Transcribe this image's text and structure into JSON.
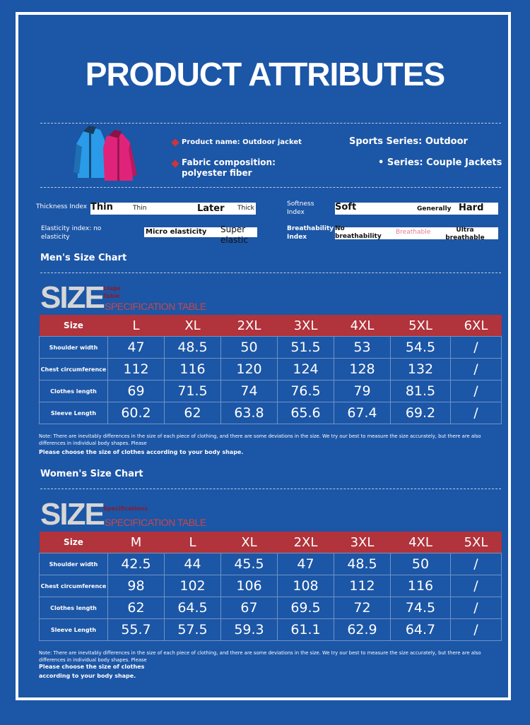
{
  "title": "PRODUCT ATTRIBUTES",
  "product": {
    "name_label": "Product name: Outdoor jacket",
    "fabric_label": "Fabric composition:",
    "fabric_value": "polyester fiber",
    "sports_series": "Sports Series: Outdoor",
    "series": "• Series: Couple Jackets"
  },
  "indices": {
    "thickness": {
      "label": "Thickness Index",
      "a": "Thin",
      "b": "Thin",
      "c": "Later",
      "d": "Thick"
    },
    "softness": {
      "label": "Softness Index",
      "a": "Soft",
      "b": "Generally",
      "c": "Hard"
    },
    "elasticity": {
      "label": "Elasticity index: no elasticity",
      "a": "Micro elasticity",
      "b": "Super elastic"
    },
    "breathability": {
      "label": "Breathability Index",
      "a": "No breathability",
      "b": "Breathable",
      "c": "Ultra breathable"
    }
  },
  "mens": {
    "title": "Men's Size Chart",
    "size_word": "SIZE",
    "sub1": "Liuge",
    "sub2": "Table",
    "spec": "SPECIFICATION TABLE",
    "header": [
      "Size",
      "L",
      "XL",
      "2XL",
      "3XL",
      "4XL",
      "5XL",
      "6XL"
    ],
    "rows": [
      {
        "label": "Shoulder width",
        "values": [
          "47",
          "48.5",
          "50",
          "51.5",
          "53",
          "54.5",
          "/"
        ]
      },
      {
        "label": "Chest circumference",
        "values": [
          "112",
          "116",
          "120",
          "124",
          "128",
          "132",
          "/"
        ]
      },
      {
        "label": "Clothes length",
        "values": [
          "69",
          "71.5",
          "74",
          "76.5",
          "79",
          "81.5",
          "/"
        ]
      },
      {
        "label": "Sleeve Length",
        "values": [
          "60.2",
          "62",
          "63.8",
          "65.6",
          "67.4",
          "69.2",
          "/"
        ]
      }
    ],
    "note": "Note: There are inevitably differences in the size of each piece of clothing, and there are some deviations in the size. We try our best to measure the size accurately, but there are also differences in individual body shapes. Please",
    "choose": "Please choose the size of clothes according to your body shape."
  },
  "womens": {
    "title": "Women's Size Chart",
    "size_word": "SIZE",
    "sub1": "Specifications",
    "spec": "SPECIFICATION TABLE",
    "header": [
      "Size",
      "M",
      "L",
      "XL",
      "2XL",
      "3XL",
      "4XL",
      "5XL"
    ],
    "rows": [
      {
        "label": "Shoulder width",
        "values": [
          "42.5",
          "44",
          "45.5",
          "47",
          "48.5",
          "50",
          "/"
        ]
      },
      {
        "label": "Chest circumference",
        "values": [
          "98",
          "102",
          "106",
          "108",
          "112",
          "116",
          "/"
        ]
      },
      {
        "label": "Clothes length",
        "values": [
          "62",
          "64.5",
          "67",
          "69.5",
          "72",
          "74.5",
          "/"
        ]
      },
      {
        "label": "Sleeve Length",
        "values": [
          "55.7",
          "57.5",
          "59.3",
          "61.1",
          "62.9",
          "64.7",
          "/"
        ]
      }
    ],
    "note": "Note: There are inevitably differences in the size of each piece of clothing, and there are some deviations in the size. We try our best to measure the size accurately, but there are also differences in individual body shapes. Please",
    "choose_1": "Please choose the size of clothes",
    "choose_2": "according to your body shape."
  },
  "colors": {
    "background": "#1c56a6",
    "header_red": "#b1333b",
    "accent_red": "#c8373b"
  }
}
